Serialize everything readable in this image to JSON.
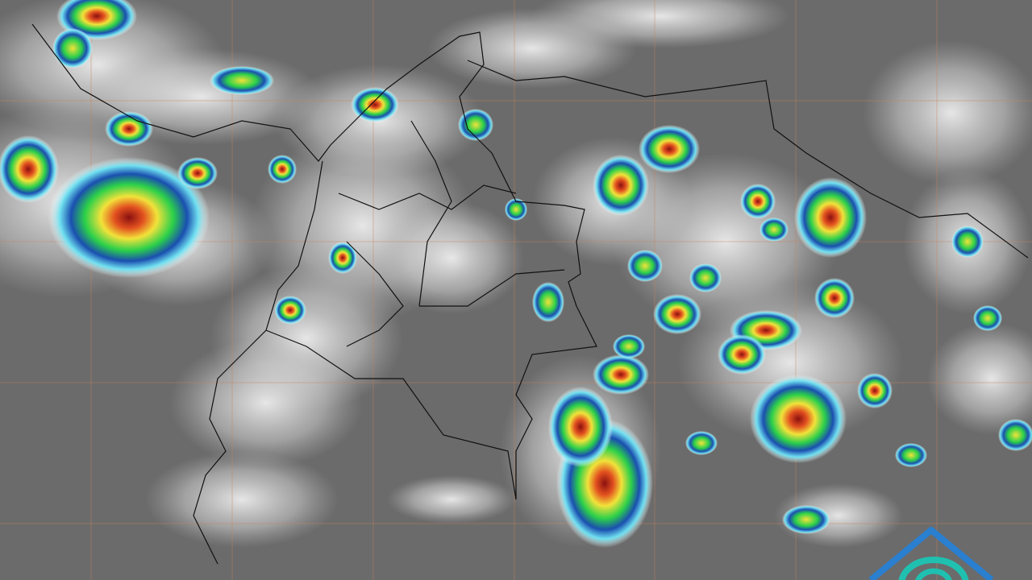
{
  "image": {
    "type": "infrared satellite image",
    "colors": {
      "background": "#6b6b6b",
      "cloud": "#f2f2f2",
      "grid": "#c9835a",
      "border": "#111111",
      "scale": [
        "#ffffff",
        "#6fe0f0",
        "#1a4fb0",
        "#2bd04a",
        "#f2e23a",
        "#e2501f",
        "#8a1010"
      ]
    }
  },
  "logo": {
    "icon": "house-wave-logo-icon",
    "colors": [
      "#2a7fcf",
      "#20c0b0"
    ]
  }
}
